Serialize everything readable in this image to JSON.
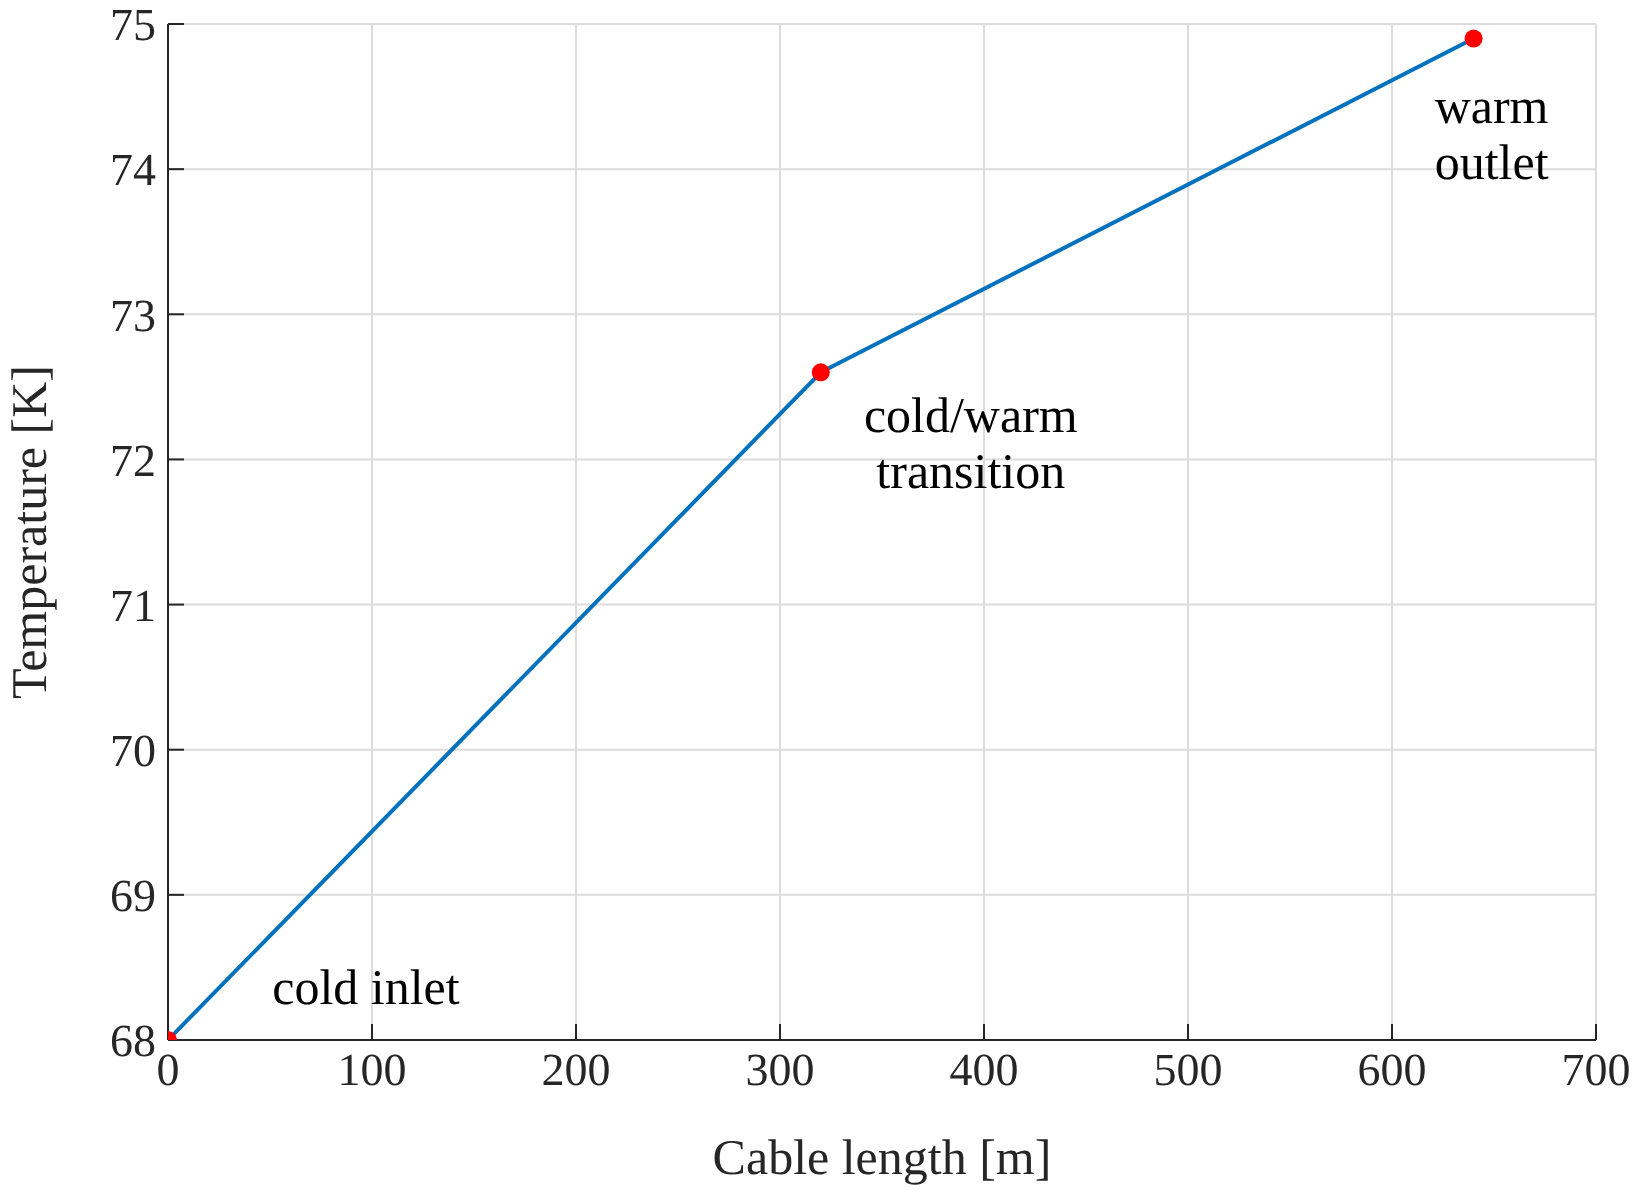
{
  "chart_data": {
    "type": "line",
    "xlabel": "Cable length [m]",
    "ylabel": "Temperature [K]",
    "x": [
      0,
      320,
      640
    ],
    "series": [
      {
        "color": "#0072bd",
        "values": [
          68,
          72.6,
          74.9
        ]
      },
      {
        "type": "scatter",
        "color": "#ff0000",
        "values": [
          68,
          72.6,
          74.9
        ],
        "marker": "circle"
      }
    ],
    "xlim": [
      0,
      700
    ],
    "xticks": [
      0,
      100,
      200,
      300,
      400,
      500,
      600,
      700
    ],
    "ylim": [
      68,
      75
    ],
    "yticks": [
      68,
      69,
      70,
      71,
      72,
      73,
      74,
      75
    ],
    "grid": true,
    "legend": false,
    "annotations": [
      {
        "text": "cold inlet",
        "x": 0,
        "y": 68
      },
      {
        "text": "cold/warm\ntransition",
        "x": 320,
        "y": 72.6
      },
      {
        "text": "warm\noutlet",
        "x": 640,
        "y": 74.9
      }
    ]
  }
}
